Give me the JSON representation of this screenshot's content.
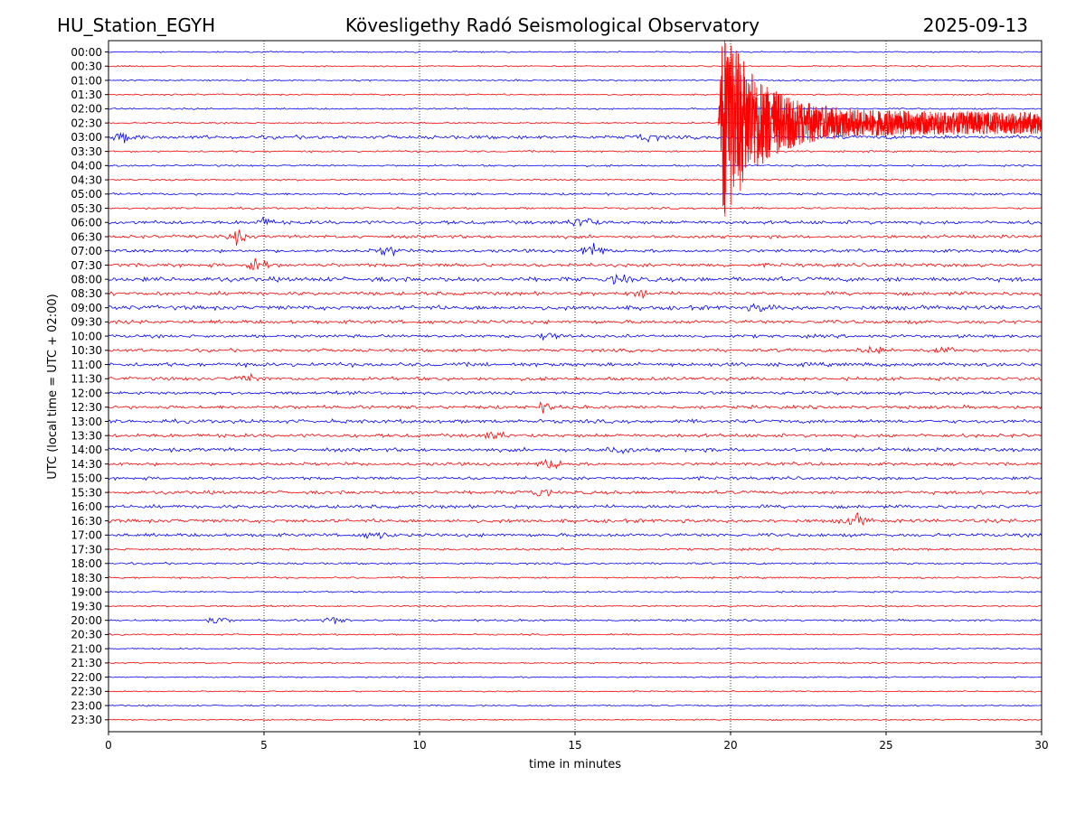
{
  "header": {
    "station": "HU_Station_EGYH",
    "observatory": "Kövesligethy Radó Seismological Observatory",
    "date": "2025-09-13"
  },
  "chart_data": {
    "type": "line",
    "title": "Kövesligethy Radó Seismological Observatory",
    "xlabel": "time in minutes",
    "ylabel": "UTC (local time = UTC + 02:00)",
    "xlim": [
      0,
      30
    ],
    "xticks": [
      0,
      5,
      10,
      15,
      20,
      25,
      30
    ],
    "xtick_labels": [
      "0",
      "5",
      "10",
      "15",
      "20",
      "25",
      "30"
    ],
    "grid": "vertical dotted lines at x = 5, 10, 15, 20, 25",
    "row_colors": [
      "#0000ff",
      "#ff0000"
    ],
    "rows": [
      "00:00",
      "00:30",
      "01:00",
      "01:30",
      "02:00",
      "02:30",
      "03:00",
      "03:30",
      "04:00",
      "04:30",
      "05:00",
      "05:30",
      "06:00",
      "06:30",
      "07:00",
      "07:30",
      "08:00",
      "08:30",
      "09:00",
      "09:30",
      "10:00",
      "10:30",
      "11:00",
      "11:30",
      "12:00",
      "12:30",
      "13:00",
      "13:30",
      "14:00",
      "14:30",
      "15:00",
      "15:30",
      "16:00",
      "16:30",
      "17:00",
      "17:30",
      "18:00",
      "18:30",
      "19:00",
      "19:30",
      "20:00",
      "20:30",
      "21:00",
      "21:30",
      "22:00",
      "22:30",
      "23:00",
      "23:30"
    ],
    "noise_level": [
      0.6,
      0.6,
      0.7,
      0.7,
      0.7,
      0.7,
      1.6,
      0.8,
      0.8,
      0.8,
      1.0,
      0.9,
      1.6,
      1.4,
      1.4,
      1.6,
      2.0,
      1.6,
      1.9,
      1.6,
      1.4,
      1.4,
      1.7,
      1.5,
      1.4,
      1.5,
      1.6,
      1.6,
      1.6,
      1.4,
      1.4,
      1.5,
      1.5,
      1.6,
      1.5,
      1.0,
      0.9,
      0.8,
      0.7,
      0.7,
      0.9,
      0.7,
      0.6,
      0.6,
      0.6,
      0.6,
      0.6,
      0.6
    ],
    "bursts": [
      {
        "row": "03:00",
        "x": 0.5,
        "amp": 3.5
      },
      {
        "row": "03:00",
        "x": 17.3,
        "amp": 3
      },
      {
        "row": "06:00",
        "x": 15.2,
        "amp": 7
      },
      {
        "row": "06:00",
        "x": 5.0,
        "amp": 3
      },
      {
        "row": "06:30",
        "x": 4.1,
        "amp": 5
      },
      {
        "row": "07:00",
        "x": 9.0,
        "amp": 4
      },
      {
        "row": "07:00",
        "x": 15.6,
        "amp": 6
      },
      {
        "row": "07:30",
        "x": 4.8,
        "amp": 6
      },
      {
        "row": "08:00",
        "x": 16.5,
        "amp": 3
      },
      {
        "row": "08:30",
        "x": 17.2,
        "amp": 3
      },
      {
        "row": "09:00",
        "x": 21.0,
        "amp": 3
      },
      {
        "row": "10:00",
        "x": 14.2,
        "amp": 3.5
      },
      {
        "row": "10:30",
        "x": 24.5,
        "amp": 4
      },
      {
        "row": "10:30",
        "x": 26.7,
        "amp": 4
      },
      {
        "row": "11:30",
        "x": 4.5,
        "amp": 3
      },
      {
        "row": "12:30",
        "x": 14.0,
        "amp": 3
      },
      {
        "row": "13:30",
        "x": 12.5,
        "amp": 4
      },
      {
        "row": "14:00",
        "x": 16.4,
        "amp": 3
      },
      {
        "row": "14:30",
        "x": 14.2,
        "amp": 5
      },
      {
        "row": "15:30",
        "x": 13.8,
        "amp": 3
      },
      {
        "row": "16:30",
        "x": 24.0,
        "amp": 5
      },
      {
        "row": "17:00",
        "x": 8.6,
        "amp": 3
      },
      {
        "row": "20:00",
        "x": 3.5,
        "amp": 3
      },
      {
        "row": "20:00",
        "x": 7.2,
        "amp": 2.5
      }
    ],
    "earthquake": {
      "row": "02:30",
      "onset_minute": 19.6,
      "peak_amplitude_rows": 7
    }
  }
}
